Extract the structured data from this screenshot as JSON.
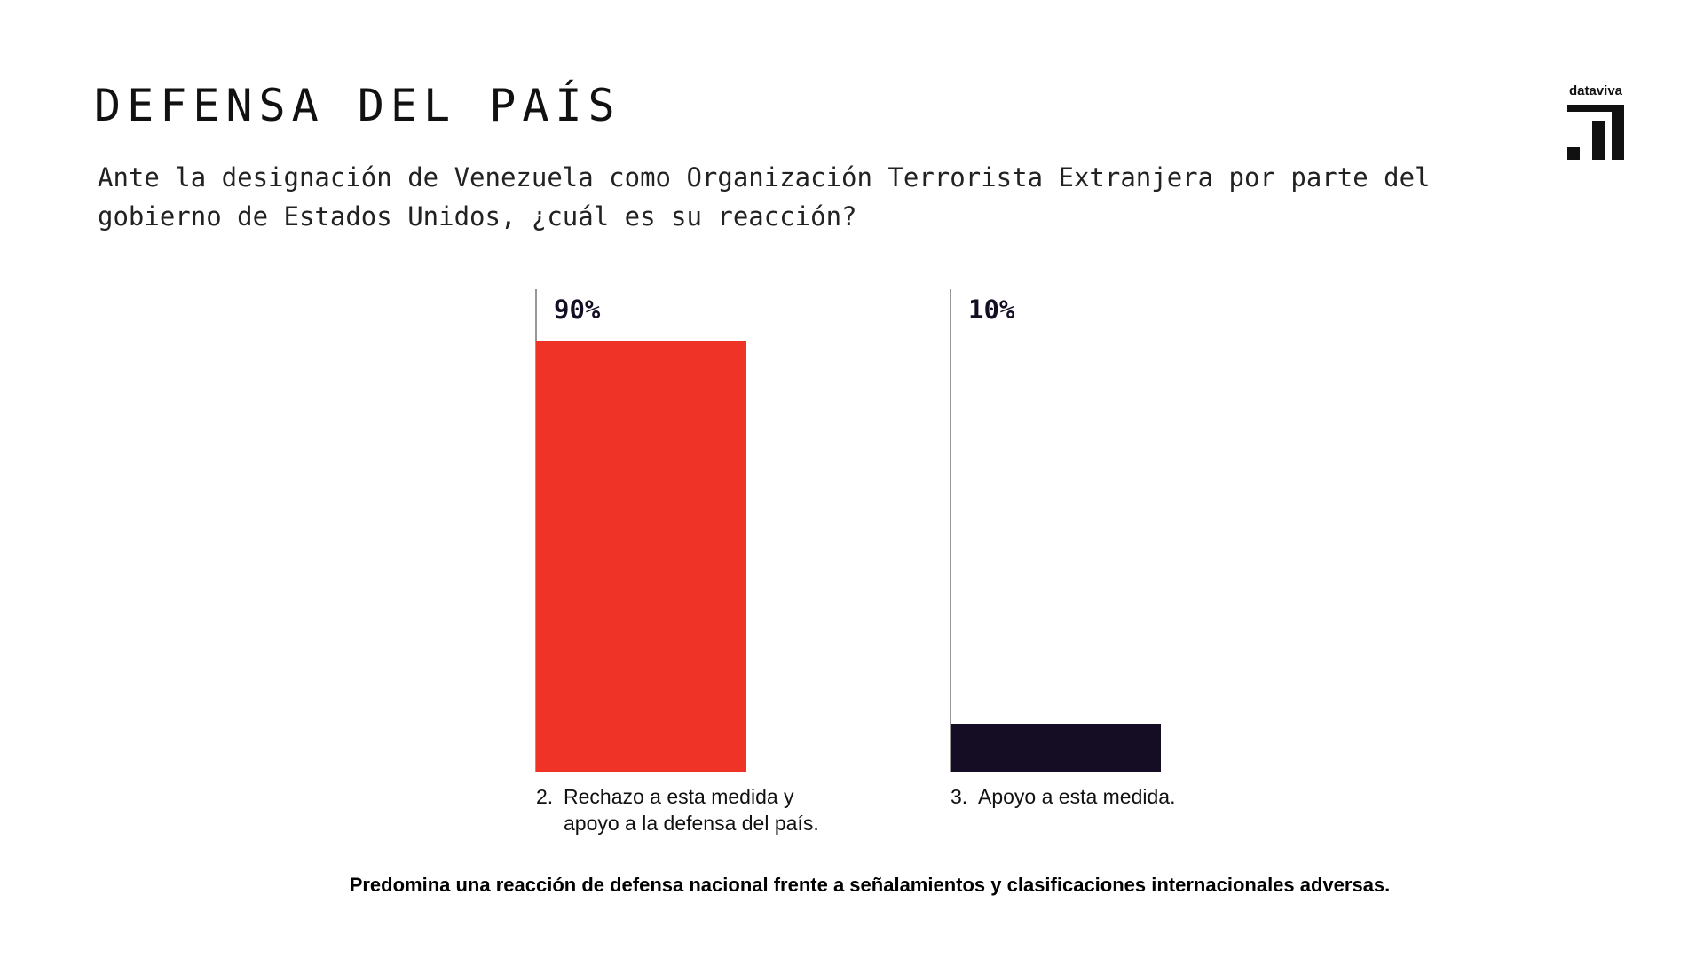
{
  "logo": {
    "text": "dataviva",
    "icon": "dataviva-logo-icon"
  },
  "chart_data": {
    "type": "bar",
    "title": "DEFENSA DEL PAÍS",
    "subtitle": "Ante la designación de Venezuela como Organización Terrorista Extranjera por parte del gobierno de Estados Unidos, ¿cuál es su reacción?",
    "categories": [
      "2. Rechazo a esta medida y apoyo a la defensa del país.",
      "3. Apoyo a esta medida."
    ],
    "category_numbers": [
      "2.",
      "3."
    ],
    "category_lines": [
      [
        "Rechazo a esta medida y",
        "apoyo a la defensa del país."
      ],
      [
        "Apoyo a esta medida."
      ]
    ],
    "values": [
      90,
      10
    ],
    "value_labels": [
      "90%",
      "10%"
    ],
    "colors": [
      "#EF3327",
      "#150D24"
    ],
    "ylim": [
      0,
      100
    ],
    "xlabel": "",
    "ylabel": "",
    "grid": false,
    "legend": "none"
  },
  "footer": {
    "note": "Predomina una reacción de defensa nacional frente a señalamientos y clasificaciones internacionales adversas."
  }
}
